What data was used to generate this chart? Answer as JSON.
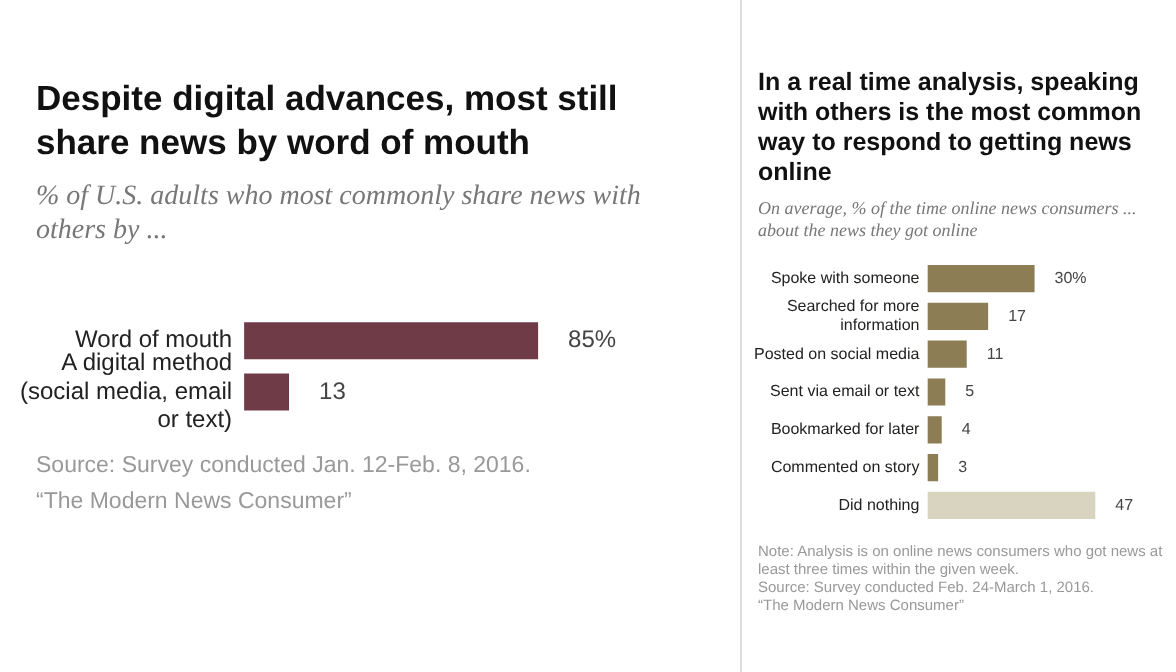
{
  "chart_data": [
    {
      "type": "bar",
      "orientation": "horizontal",
      "title": "Despite digital advances, most still share news by word of mouth",
      "subtitle": "% of U.S. adults who most commonly share news with others by ...",
      "categories": [
        "Word of mouth",
        "A digital method (social media, email or text)"
      ],
      "values": [
        85,
        13
      ],
      "colors": [
        "#6e3b46",
        "#6e3b46"
      ],
      "value_labels": [
        "85%",
        "13"
      ],
      "tick_labels": "y",
      "annotations": [
        "Source: Survey conducted Jan. 12-Feb. 8, 2016.",
        "“The Modern News Consumer”"
      ]
    },
    {
      "type": "bar",
      "orientation": "horizontal",
      "title": "In a real time analysis, speaking with others is the most common way to respond to getting news online",
      "subtitle": "On average, % of the time online news consumers ... about the news they got online",
      "categories": [
        "Spoke with someone",
        "Searched for more information",
        "Posted on social media",
        "Sent via email or text",
        "Bookmarked for later",
        "Commented on story",
        "Did nothing"
      ],
      "values": [
        30,
        17,
        11,
        5,
        4,
        3,
        47
      ],
      "colors": [
        "#8c7d55",
        "#8c7d55",
        "#8c7d55",
        "#8c7d55",
        "#8c7d55",
        "#8c7d55",
        "#d9d4c0"
      ],
      "value_labels": [
        "30%",
        "17",
        "11",
        "5",
        "4",
        "3",
        "47"
      ],
      "tick_labels": "y",
      "annotations": [
        "Note: Analysis is on online news consumers who got news at least three times within the given week.",
        "Source: Survey conducted Feb. 24-March 1, 2016.",
        "“The Modern News Consumer”"
      ]
    }
  ]
}
